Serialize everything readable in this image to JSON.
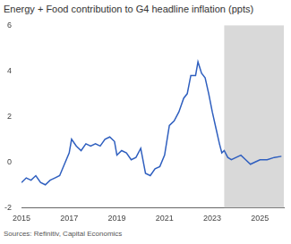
{
  "chart_data": {
    "type": "line",
    "title": "Energy + Food contribution to G4 headline inflation (ppts)",
    "source": "Sources: Refinitiv, Capital Economics",
    "x": [
      2015.0,
      2015.2,
      2015.4,
      2015.6,
      2015.8,
      2016.0,
      2016.2,
      2016.4,
      2016.6,
      2016.8,
      2017.0,
      2017.1,
      2017.3,
      2017.5,
      2017.7,
      2017.9,
      2018.1,
      2018.3,
      2018.5,
      2018.7,
      2018.9,
      2019.0,
      2019.2,
      2019.4,
      2019.6,
      2019.8,
      2020.0,
      2020.2,
      2020.4,
      2020.6,
      2020.8,
      2021.0,
      2021.2,
      2021.4,
      2021.6,
      2021.8,
      2021.95,
      2022.1,
      2022.3,
      2022.4,
      2022.55,
      2022.7,
      2022.85,
      2023.0,
      2023.15,
      2023.3,
      2023.4,
      2023.5,
      2023.65,
      2023.8,
      2024.0,
      2024.2,
      2024.4,
      2024.6,
      2024.8,
      2025.0,
      2025.3,
      2025.6,
      2025.9
    ],
    "values": [
      -0.9,
      -0.7,
      -0.8,
      -0.6,
      -0.9,
      -1.0,
      -0.8,
      -0.7,
      -0.6,
      -0.1,
      0.4,
      1.0,
      0.7,
      0.5,
      0.8,
      0.7,
      0.8,
      0.7,
      1.0,
      1.1,
      0.9,
      0.3,
      0.5,
      0.4,
      0.1,
      0.2,
      0.6,
      -0.5,
      -0.6,
      -0.3,
      -0.2,
      0.3,
      1.6,
      1.8,
      2.2,
      2.8,
      3.0,
      3.8,
      3.8,
      4.4,
      3.9,
      3.7,
      3.0,
      2.2,
      1.5,
      0.8,
      0.4,
      0.5,
      0.2,
      0.1,
      0.2,
      0.3,
      0.1,
      -0.1,
      0.0,
      0.1,
      0.1,
      0.2,
      0.25
    ],
    "color": "#2f5fbf",
    "shaded_x": [
      2023.5,
      2026
    ],
    "xlim": [
      2015,
      2026
    ],
    "xticks": [
      2015,
      2017,
      2019,
      2021,
      2023,
      2025
    ],
    "ylim": [
      -2,
      6
    ],
    "yticks": [
      -2,
      0,
      2,
      4,
      6
    ],
    "grid": false
  }
}
